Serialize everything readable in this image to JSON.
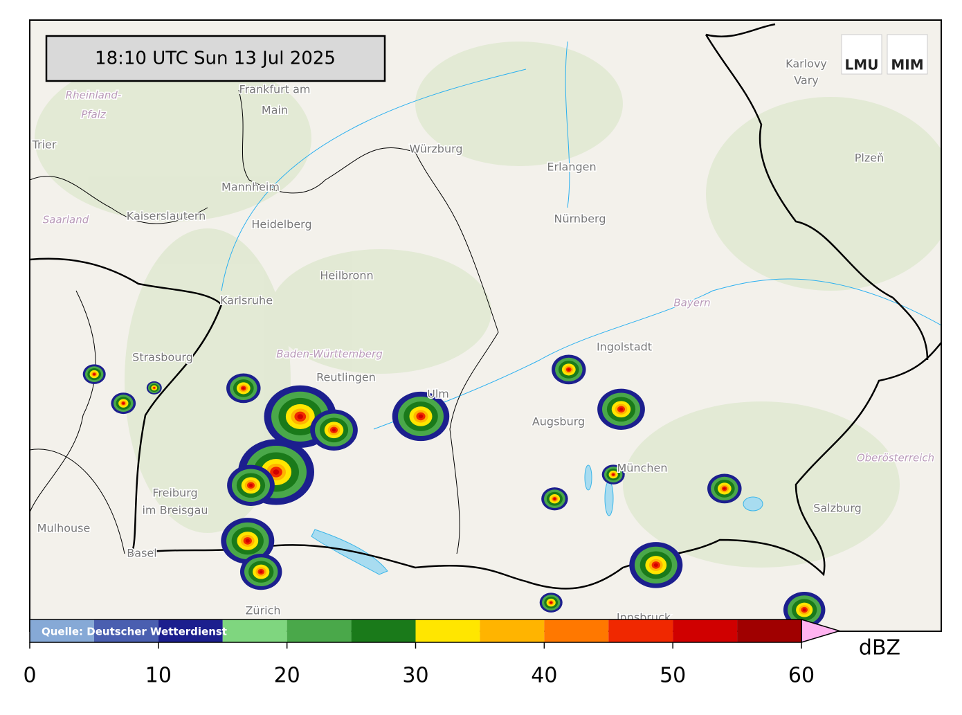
{
  "timestamp": "18:10 UTC  Sun 13 Jul 2025",
  "logo": {
    "left": "LMU",
    "right": "MIM"
  },
  "source": "Quelle: Deutscher Wetterdienst",
  "places": [
    {
      "label": "Frankfurt am"
    },
    {
      "label": "Main"
    },
    {
      "label": "Rheinland-"
    },
    {
      "label": "Pfalz"
    },
    {
      "label": "Trier"
    },
    {
      "label": "Würzburg"
    },
    {
      "label": "Erlangen"
    },
    {
      "label": "Nürnberg"
    },
    {
      "label": "Mannheim"
    },
    {
      "label": "Kaiserslautern"
    },
    {
      "label": "Heidelberg"
    },
    {
      "label": "Saarland"
    },
    {
      "label": "Heilbronn"
    },
    {
      "label": "Karlsruhe"
    },
    {
      "label": "Strasbourg"
    },
    {
      "label": "Baden-Württemberg"
    },
    {
      "label": "Reutlingen"
    },
    {
      "label": "Ulm"
    },
    {
      "label": "Ingolstadt"
    },
    {
      "label": "Augsburg"
    },
    {
      "label": "München"
    },
    {
      "label": "Bayern"
    },
    {
      "label": "Freiburg"
    },
    {
      "label": "im Breisgau"
    },
    {
      "label": "Mulhouse"
    },
    {
      "label": "Basel"
    },
    {
      "label": "Karlovy"
    },
    {
      "label": "Vary"
    },
    {
      "label": "Plzeň"
    },
    {
      "label": "Oberösterreich"
    },
    {
      "label": "Salzburg"
    },
    {
      "label": "Zürich"
    },
    {
      "label": "Innsbruck"
    }
  ],
  "colorbar": {
    "unit": "dBZ",
    "bins": [
      0,
      5,
      10,
      15,
      20,
      25,
      30,
      35,
      40,
      45,
      50,
      55,
      60
    ],
    "colors": [
      "#86a9d6",
      "#4a5fb0",
      "#1c1f8e",
      "#7fd67f",
      "#4aa84a",
      "#1a7a1a",
      "#ffe600",
      "#ffb400",
      "#ff7800",
      "#f02800",
      "#d00000",
      "#a00000"
    ],
    "extend_color": "#ffb3f0",
    "xlim": [
      0,
      60
    ],
    "ticks": [
      0,
      10,
      20,
      30,
      40,
      50,
      60
    ]
  }
}
